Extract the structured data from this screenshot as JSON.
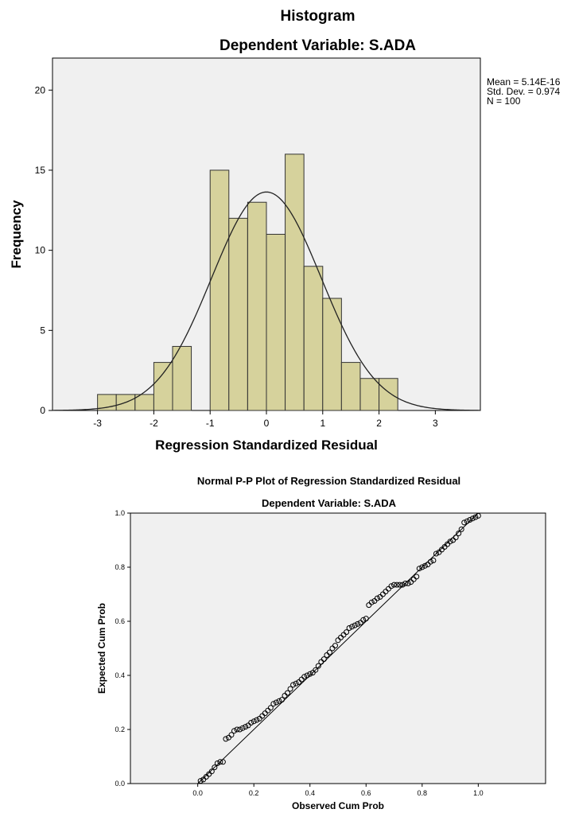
{
  "chart_data": [
    {
      "type": "bar",
      "title": "Histogram",
      "subtitle": "Dependent Variable: S.ADA",
      "xlabel": "Regression Standardized Residual",
      "ylabel": "Frequency",
      "xlim": [
        -3.8,
        3.8
      ],
      "ylim": [
        0,
        22
      ],
      "xticks": [
        -3,
        -2,
        -1,
        0,
        1,
        2,
        3
      ],
      "yticks": [
        0,
        5,
        10,
        15,
        20
      ],
      "bin_width": 0.333,
      "bins": [
        {
          "start": -3.0,
          "value": 1
        },
        {
          "start": -2.667,
          "value": 1
        },
        {
          "start": -2.333,
          "value": 1
        },
        {
          "start": -2.0,
          "value": 3
        },
        {
          "start": -1.667,
          "value": 4
        },
        {
          "start": -1.0,
          "value": 15
        },
        {
          "start": -0.667,
          "value": 12
        },
        {
          "start": -0.333,
          "value": 13
        },
        {
          "start": 0.0,
          "value": 11
        },
        {
          "start": 0.333,
          "value": 16
        },
        {
          "start": 0.667,
          "value": 9
        },
        {
          "start": 1.0,
          "value": 7
        },
        {
          "start": 1.333,
          "value": 3
        },
        {
          "start": 1.667,
          "value": 2
        },
        {
          "start": 2.0,
          "value": 2
        }
      ],
      "normal_curve": {
        "mean": 0,
        "sd": 0.974,
        "n": 100
      },
      "stats": [
        "Mean = 5.14E-16",
        "Std. Dev. = 0.974",
        "N = 100"
      ],
      "colors": {
        "bar": "#d6d29c",
        "plot_bg": "#f0f0f0",
        "edge": "#333333"
      }
    },
    {
      "type": "scatter",
      "title": "Normal P-P Plot of Regression Standardized Residual",
      "subtitle": "Dependent Variable: S.ADA",
      "xlabel": "Observed Cum Prob",
      "ylabel": "Expected Cum Prob",
      "xlim": [
        -0.24,
        1.24
      ],
      "ylim": [
        0,
        1
      ],
      "xticks": [
        "0.0",
        "0.2",
        "0.4",
        "0.6",
        "0.8",
        "1.0"
      ],
      "yticks": [
        "0.0",
        "0.2",
        "0.4",
        "0.6",
        "0.8",
        "1.0"
      ],
      "points": [
        [
          0.01,
          0.01
        ],
        [
          0.02,
          0.015
        ],
        [
          0.03,
          0.025
        ],
        [
          0.04,
          0.035
        ],
        [
          0.05,
          0.045
        ],
        [
          0.06,
          0.06
        ],
        [
          0.07,
          0.075
        ],
        [
          0.08,
          0.08
        ],
        [
          0.09,
          0.08
        ],
        [
          0.1,
          0.165
        ],
        [
          0.11,
          0.17
        ],
        [
          0.12,
          0.18
        ],
        [
          0.13,
          0.195
        ],
        [
          0.14,
          0.2
        ],
        [
          0.15,
          0.2
        ],
        [
          0.16,
          0.205
        ],
        [
          0.17,
          0.21
        ],
        [
          0.18,
          0.215
        ],
        [
          0.19,
          0.225
        ],
        [
          0.2,
          0.23
        ],
        [
          0.21,
          0.235
        ],
        [
          0.22,
          0.24
        ],
        [
          0.23,
          0.25
        ],
        [
          0.24,
          0.26
        ],
        [
          0.25,
          0.27
        ],
        [
          0.26,
          0.28
        ],
        [
          0.27,
          0.295
        ],
        [
          0.28,
          0.3
        ],
        [
          0.29,
          0.305
        ],
        [
          0.3,
          0.31
        ],
        [
          0.31,
          0.325
        ],
        [
          0.32,
          0.335
        ],
        [
          0.33,
          0.35
        ],
        [
          0.34,
          0.365
        ],
        [
          0.35,
          0.37
        ],
        [
          0.36,
          0.375
        ],
        [
          0.37,
          0.385
        ],
        [
          0.38,
          0.395
        ],
        [
          0.39,
          0.4
        ],
        [
          0.4,
          0.405
        ],
        [
          0.41,
          0.41
        ],
        [
          0.42,
          0.42
        ],
        [
          0.43,
          0.435
        ],
        [
          0.44,
          0.45
        ],
        [
          0.45,
          0.46
        ],
        [
          0.46,
          0.475
        ],
        [
          0.47,
          0.485
        ],
        [
          0.48,
          0.5
        ],
        [
          0.49,
          0.51
        ],
        [
          0.5,
          0.53
        ],
        [
          0.51,
          0.54
        ],
        [
          0.52,
          0.55
        ],
        [
          0.53,
          0.56
        ],
        [
          0.54,
          0.575
        ],
        [
          0.55,
          0.58
        ],
        [
          0.56,
          0.585
        ],
        [
          0.57,
          0.59
        ],
        [
          0.58,
          0.595
        ],
        [
          0.59,
          0.605
        ],
        [
          0.6,
          0.61
        ],
        [
          0.61,
          0.66
        ],
        [
          0.62,
          0.67
        ],
        [
          0.63,
          0.675
        ],
        [
          0.64,
          0.685
        ],
        [
          0.65,
          0.69
        ],
        [
          0.66,
          0.7
        ],
        [
          0.67,
          0.71
        ],
        [
          0.68,
          0.72
        ],
        [
          0.69,
          0.73
        ],
        [
          0.7,
          0.735
        ],
        [
          0.71,
          0.735
        ],
        [
          0.72,
          0.735
        ],
        [
          0.73,
          0.735
        ],
        [
          0.74,
          0.74
        ],
        [
          0.75,
          0.74
        ],
        [
          0.76,
          0.745
        ],
        [
          0.77,
          0.755
        ],
        [
          0.78,
          0.765
        ],
        [
          0.79,
          0.795
        ],
        [
          0.8,
          0.8
        ],
        [
          0.81,
          0.805
        ],
        [
          0.82,
          0.81
        ],
        [
          0.83,
          0.82
        ],
        [
          0.84,
          0.825
        ],
        [
          0.85,
          0.85
        ],
        [
          0.86,
          0.855
        ],
        [
          0.87,
          0.865
        ],
        [
          0.88,
          0.875
        ],
        [
          0.89,
          0.885
        ],
        [
          0.9,
          0.895
        ],
        [
          0.91,
          0.9
        ],
        [
          0.92,
          0.91
        ],
        [
          0.93,
          0.925
        ],
        [
          0.94,
          0.94
        ],
        [
          0.95,
          0.965
        ],
        [
          0.96,
          0.97
        ],
        [
          0.97,
          0.975
        ],
        [
          0.98,
          0.98
        ],
        [
          0.99,
          0.985
        ],
        [
          1.0,
          0.99
        ]
      ],
      "reference_line": [
        [
          0,
          0
        ],
        [
          1,
          1
        ]
      ],
      "colors": {
        "plot_bg": "#f0f0f0",
        "point": "#000000"
      }
    }
  ]
}
